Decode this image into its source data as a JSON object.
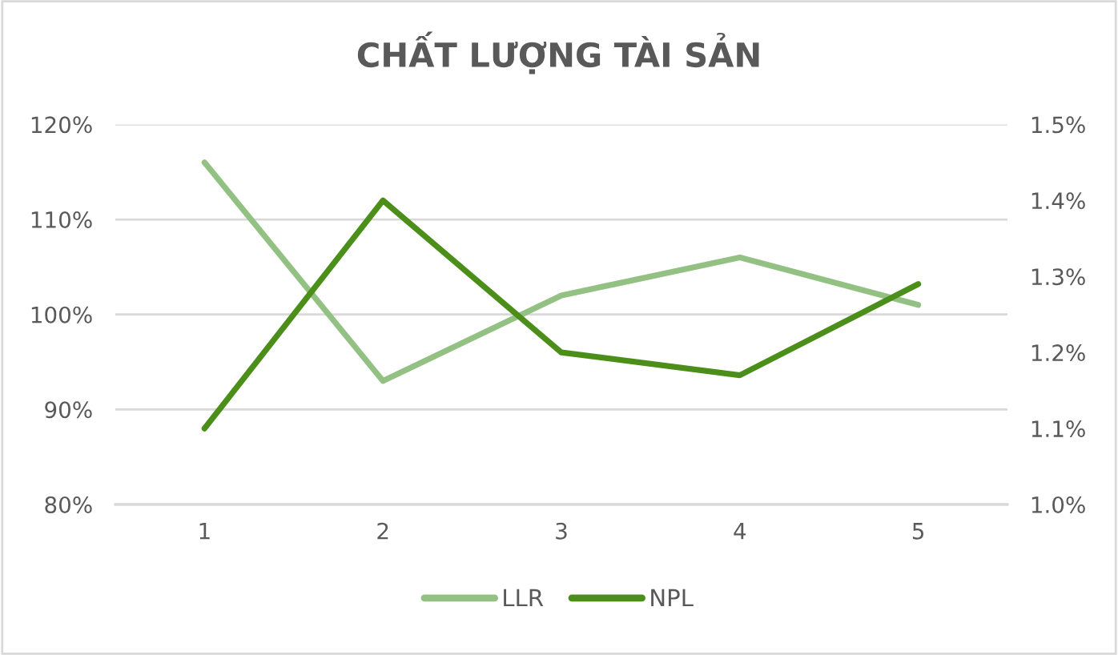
{
  "chart_data": {
    "type": "line",
    "title": "CHẤT LƯỢNG TÀI SẢN",
    "categories": [
      "1",
      "2",
      "3",
      "4",
      "5"
    ],
    "series": [
      {
        "name": "LLR",
        "color": "#93c183",
        "values": [
          116,
          93,
          102,
          106,
          101
        ]
      },
      {
        "name": "NPL",
        "color": "#4b8f1a",
        "axis": "y2",
        "values": [
          1.1,
          1.4,
          1.2,
          1.17,
          1.29
        ]
      }
    ],
    "ylim": [
      80,
      120
    ],
    "yticks": [
      {
        "value": 80,
        "label": "80%"
      },
      {
        "value": 90,
        "label": "90%"
      },
      {
        "value": 100,
        "label": "100%"
      },
      {
        "value": 110,
        "label": "110%"
      },
      {
        "value": 120,
        "label": "120%"
      }
    ],
    "y2lim": [
      1.0,
      1.5
    ],
    "y2ticks": [
      {
        "value": 1.0,
        "label": "1.0%"
      },
      {
        "value": 1.1,
        "label": "1.1%"
      },
      {
        "value": 1.2,
        "label": "1.2%"
      },
      {
        "value": 1.3,
        "label": "1.3%"
      },
      {
        "value": 1.4,
        "label": "1.4%"
      },
      {
        "value": 1.5,
        "label": "1.5%"
      }
    ],
    "grid": "y",
    "legend": "bottom",
    "line_style": "solid"
  }
}
